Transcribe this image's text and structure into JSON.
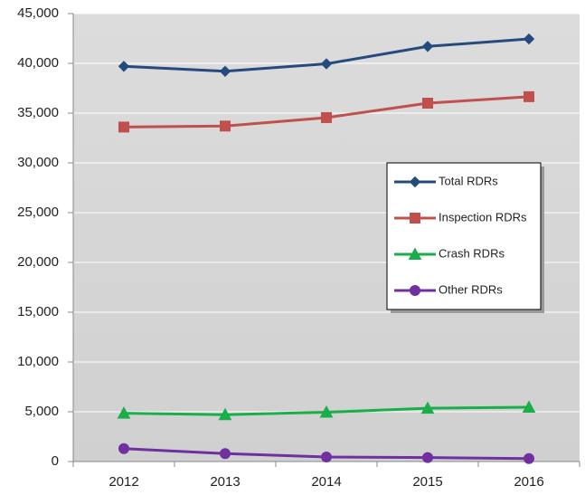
{
  "chart_data": {
    "type": "line",
    "categories": [
      "2012",
      "2013",
      "2014",
      "2015",
      "2016"
    ],
    "series": [
      {
        "name": "Total RDRs",
        "color": "#254a7e",
        "marker": "diamond",
        "values": [
          39700,
          39200,
          39950,
          41700,
          42450
        ]
      },
      {
        "name": "Inspection RDRs",
        "color": "#c0504d",
        "marker": "square",
        "values": [
          33600,
          33700,
          34550,
          36000,
          36650
        ]
      },
      {
        "name": "Crash RDRs",
        "color": "#1aae4a",
        "marker": "triangle",
        "values": [
          4850,
          4700,
          4950,
          5350,
          5450
        ]
      },
      {
        "name": "Other RDRs",
        "color": "#7030a0",
        "marker": "circle",
        "values": [
          1300,
          800,
          450,
          400,
          300
        ]
      }
    ],
    "ylim": [
      0,
      45000
    ],
    "yticks": [
      0,
      {
        "value": 5000,
        "label": "5,000"
      },
      {
        "value": 10000,
        "label": "10,000"
      },
      {
        "value": 15000,
        "label": "15,000"
      },
      {
        "value": 20000,
        "label": "20,000"
      },
      {
        "value": 25000,
        "label": "25,000"
      },
      {
        "value": 30000,
        "label": "30,000"
      },
      {
        "value": 35000,
        "label": "35,000"
      },
      {
        "value": 40000,
        "label": "40,000"
      },
      {
        "value": 45000,
        "label": "45,000"
      }
    ],
    "grid": true,
    "legend": "right"
  }
}
